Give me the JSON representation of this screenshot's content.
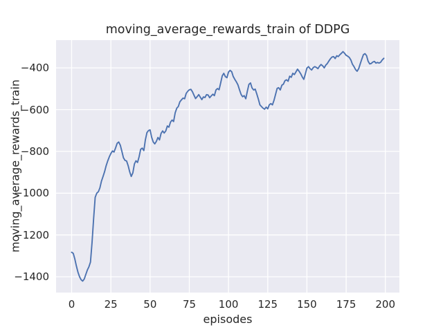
{
  "figure": {
    "title": "moving_average_rewards_train of DDPG",
    "xlabel": "episodes",
    "ylabel": "moving_average_rewards_train"
  },
  "chart_data": {
    "type": "line",
    "title": "moving_average_rewards_train of DDPG",
    "xlabel": "episodes",
    "ylabel": "moving_average_rewards_train",
    "legend": null,
    "grid": true,
    "xlim": [
      -9.95,
      208.95
    ],
    "ylim": [
      -1475.95,
      -267.05
    ],
    "xticks": [
      0,
      25,
      50,
      75,
      100,
      125,
      150,
      175,
      200
    ],
    "yticks": [
      -400,
      -600,
      -800,
      -1000,
      -1200,
      -1400
    ],
    "x_start": 0,
    "x_step": 1,
    "colors": {
      "plot_bg": "#eaeaf2",
      "grid": "#ffffff",
      "text": "#262626"
    },
    "series": [
      {
        "name": "moving_average_rewards_train",
        "color": "#4c72b0",
        "y": [
          -1283,
          -1288,
          -1315,
          -1348,
          -1378,
          -1400,
          -1414,
          -1421,
          -1411,
          -1390,
          -1368,
          -1352,
          -1330,
          -1235,
          -1120,
          -1020,
          -1000,
          -993,
          -975,
          -942,
          -920,
          -897,
          -868,
          -845,
          -826,
          -810,
          -798,
          -803,
          -783,
          -761,
          -755,
          -770,
          -800,
          -830,
          -843,
          -846,
          -868,
          -898,
          -920,
          -903,
          -860,
          -845,
          -853,
          -825,
          -790,
          -784,
          -796,
          -745,
          -710,
          -700,
          -697,
          -732,
          -755,
          -764,
          -752,
          -733,
          -745,
          -714,
          -702,
          -712,
          -702,
          -678,
          -684,
          -660,
          -650,
          -657,
          -615,
          -593,
          -585,
          -562,
          -553,
          -545,
          -548,
          -522,
          -512,
          -505,
          -503,
          -514,
          -531,
          -547,
          -538,
          -528,
          -540,
          -552,
          -539,
          -542,
          -528,
          -530,
          -543,
          -534,
          -526,
          -533,
          -506,
          -499,
          -505,
          -472,
          -438,
          -426,
          -442,
          -447,
          -420,
          -412,
          -418,
          -441,
          -455,
          -467,
          -481,
          -505,
          -527,
          -538,
          -533,
          -548,
          -512,
          -479,
          -472,
          -496,
          -506,
          -502,
          -524,
          -549,
          -577,
          -585,
          -593,
          -598,
          -588,
          -596,
          -577,
          -571,
          -577,
          -556,
          -527,
          -498,
          -495,
          -506,
          -483,
          -478,
          -461,
          -457,
          -464,
          -440,
          -445,
          -426,
          -432,
          -419,
          -406,
          -416,
          -428,
          -443,
          -455,
          -428,
          -401,
          -394,
          -404,
          -410,
          -399,
          -394,
          -398,
          -404,
          -392,
          -384,
          -390,
          -400,
          -387,
          -379,
          -367,
          -356,
          -348,
          -346,
          -355,
          -342,
          -346,
          -337,
          -330,
          -322,
          -330,
          -340,
          -344,
          -350,
          -362,
          -382,
          -394,
          -408,
          -416,
          -404,
          -380,
          -358,
          -337,
          -332,
          -341,
          -368,
          -381,
          -379,
          -372,
          -369,
          -377,
          -374,
          -377,
          -373,
          -362,
          -354
        ]
      }
    ]
  }
}
